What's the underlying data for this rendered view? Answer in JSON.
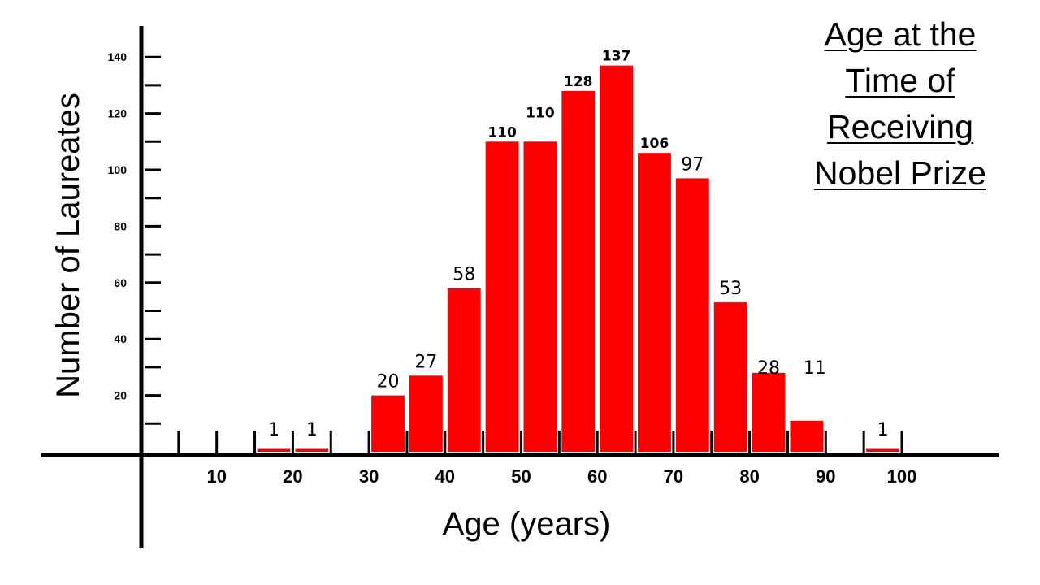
{
  "chart_data": {
    "type": "bar",
    "title": [
      "Age at the",
      "Time of",
      "Receiving",
      "Nobel Prize"
    ],
    "xlabel": "Age (years)",
    "ylabel": "Number of Laureates",
    "xlim": [
      0,
      110
    ],
    "ylim": [
      0,
      150
    ],
    "bin_width": 5,
    "xticks": [
      10,
      20,
      30,
      40,
      50,
      60,
      70,
      80,
      90,
      100
    ],
    "yticks": [
      20,
      40,
      60,
      80,
      100,
      120,
      140
    ],
    "bins": [
      {
        "start": 15,
        "value": 1
      },
      {
        "start": 20,
        "value": 1
      },
      {
        "start": 30,
        "value": 20
      },
      {
        "start": 35,
        "value": 27
      },
      {
        "start": 40,
        "value": 58
      },
      {
        "start": 45,
        "value": 110
      },
      {
        "start": 50,
        "value": 110
      },
      {
        "start": 55,
        "value": 128
      },
      {
        "start": 60,
        "value": 137
      },
      {
        "start": 65,
        "value": 106
      },
      {
        "start": 70,
        "value": 97
      },
      {
        "start": 75,
        "value": 53
      },
      {
        "start": 80,
        "value": 28
      },
      {
        "start": 85,
        "value": 11
      },
      {
        "start": 95,
        "value": 1
      }
    ],
    "bar_color": "#ff0000",
    "grid": false
  }
}
